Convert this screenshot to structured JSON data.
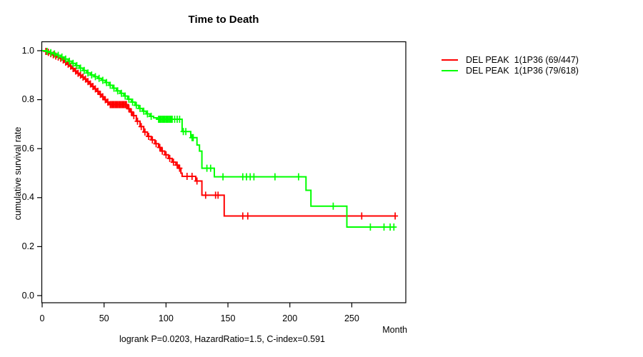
{
  "chart_data": {
    "type": "line",
    "subtype": "kaplan-meier-step-curves",
    "title": "Time to Death",
    "xlabel": "Month",
    "ylabel": "cumulative survival rate",
    "annotation": "logrank P=0.0203, HazardRatio=1.5, C-index=0.591",
    "x_ticks": [
      0,
      50,
      100,
      150,
      200,
      250
    ],
    "y_ticks": [
      "0.0",
      "0.2",
      "0.4",
      "0.6",
      "0.8",
      "1.0"
    ],
    "xlim": [
      0,
      294
    ],
    "ylim": [
      0,
      1.0
    ],
    "grid": false,
    "legend_position": "right-outside",
    "axis_color": "#000000",
    "series": [
      {
        "name": "DEL PEAK  1(1P36 (69/447)",
        "color": "#ff0000",
        "end_month": 285,
        "points": [
          [
            0,
            1.0
          ],
          [
            2,
            0.997
          ],
          [
            4,
            0.993
          ],
          [
            6,
            0.988
          ],
          [
            8,
            0.983
          ],
          [
            10,
            0.978
          ],
          [
            12,
            0.974
          ],
          [
            14,
            0.969
          ],
          [
            16,
            0.962
          ],
          [
            18,
            0.953
          ],
          [
            20,
            0.945
          ],
          [
            22,
            0.937
          ],
          [
            24,
            0.927
          ],
          [
            26,
            0.917
          ],
          [
            28,
            0.908
          ],
          [
            30,
            0.9
          ],
          [
            32,
            0.892
          ],
          [
            34,
            0.884
          ],
          [
            36,
            0.874
          ],
          [
            38,
            0.864
          ],
          [
            40,
            0.854
          ],
          [
            42,
            0.844
          ],
          [
            44,
            0.834
          ],
          [
            46,
            0.822
          ],
          [
            48,
            0.812
          ],
          [
            50,
            0.8
          ],
          [
            52,
            0.79
          ],
          [
            54,
            0.78
          ],
          [
            69,
            0.763
          ],
          [
            71,
            0.75
          ],
          [
            73,
            0.735
          ],
          [
            76,
            0.712
          ],
          [
            79,
            0.69
          ],
          [
            82,
            0.668
          ],
          [
            85,
            0.65
          ],
          [
            88,
            0.636
          ],
          [
            91,
            0.62
          ],
          [
            94,
            0.605
          ],
          [
            96,
            0.59
          ],
          [
            99,
            0.575
          ],
          [
            102,
            0.56
          ],
          [
            105,
            0.545
          ],
          [
            108,
            0.533
          ],
          [
            110,
            0.52
          ],
          [
            112,
            0.5
          ],
          [
            113,
            0.487
          ],
          [
            124,
            0.468
          ],
          [
            129,
            0.41
          ],
          [
            147,
            0.325
          ]
        ],
        "censor_months": [
          3,
          5,
          7,
          9,
          11,
          13,
          15,
          17,
          19,
          21,
          23,
          25,
          27,
          29,
          31,
          33,
          35,
          37,
          39,
          41,
          43,
          45,
          47,
          49,
          51,
          53,
          55,
          56,
          57,
          58,
          59,
          60,
          61,
          62,
          63,
          64,
          65,
          66,
          67,
          68,
          70,
          72,
          74,
          77,
          80,
          83,
          86,
          89,
          92,
          95,
          97,
          100,
          103,
          106,
          109,
          111,
          117,
          121,
          125,
          132,
          140,
          142,
          162,
          166,
          258,
          285
        ]
      },
      {
        "name": "DEL PEAK  1(1P36 (79/618)",
        "color": "#00ff00",
        "end_month": 284,
        "points": [
          [
            0,
            1.0
          ],
          [
            3,
            0.997
          ],
          [
            6,
            0.992
          ],
          [
            9,
            0.987
          ],
          [
            12,
            0.981
          ],
          [
            15,
            0.974
          ],
          [
            18,
            0.966
          ],
          [
            21,
            0.957
          ],
          [
            24,
            0.948
          ],
          [
            27,
            0.939
          ],
          [
            30,
            0.929
          ],
          [
            33,
            0.919
          ],
          [
            36,
            0.909
          ],
          [
            39,
            0.901
          ],
          [
            42,
            0.894
          ],
          [
            45,
            0.887
          ],
          [
            48,
            0.879
          ],
          [
            51,
            0.87
          ],
          [
            54,
            0.859
          ],
          [
            57,
            0.847
          ],
          [
            60,
            0.836
          ],
          [
            63,
            0.826
          ],
          [
            66,
            0.815
          ],
          [
            69,
            0.802
          ],
          [
            72,
            0.79
          ],
          [
            75,
            0.777
          ],
          [
            78,
            0.764
          ],
          [
            81,
            0.753
          ],
          [
            84,
            0.742
          ],
          [
            87,
            0.732
          ],
          [
            90,
            0.726
          ],
          [
            93,
            0.72
          ],
          [
            113,
            0.67
          ],
          [
            120,
            0.645
          ],
          [
            125,
            0.615
          ],
          [
            127,
            0.59
          ],
          [
            129,
            0.52
          ],
          [
            139,
            0.485
          ],
          [
            213,
            0.43
          ],
          [
            217,
            0.365
          ],
          [
            246,
            0.28
          ]
        ],
        "censor_months": [
          4,
          7,
          10,
          13,
          16,
          19,
          22,
          25,
          28,
          31,
          34,
          37,
          40,
          43,
          46,
          49,
          52,
          55,
          58,
          61,
          64,
          67,
          70,
          73,
          76,
          79,
          82,
          85,
          88,
          94,
          95,
          96,
          97,
          98,
          99,
          100,
          101,
          102,
          103,
          104,
          105,
          107,
          109,
          111,
          114,
          116,
          121,
          122,
          133,
          136,
          146,
          162,
          165,
          168,
          171,
          188,
          207,
          235,
          265,
          276,
          281,
          284
        ]
      }
    ]
  }
}
